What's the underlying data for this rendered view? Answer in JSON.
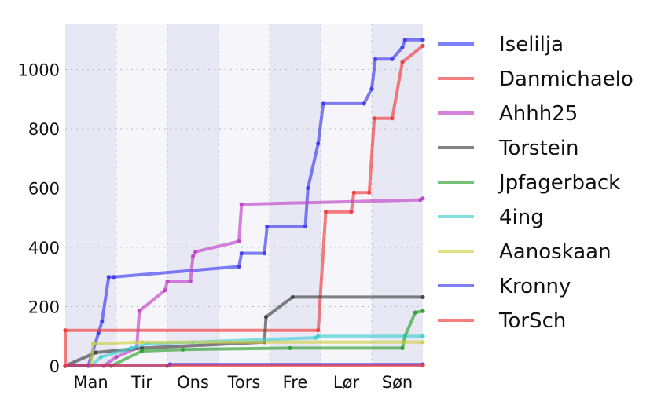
{
  "chart_data": {
    "type": "line",
    "title": "",
    "xlabel": "",
    "ylabel": "",
    "x_tick_labels": [
      "Man",
      "Tir",
      "Ons",
      "Tors",
      "Fre",
      "Lør",
      "Søn"
    ],
    "xlim": [
      0,
      7
    ],
    "ylim": [
      0,
      1155
    ],
    "y_ticks": [
      0,
      200,
      400,
      600,
      800,
      1000
    ],
    "grid": true,
    "alternating_day_shading": true,
    "legend_placement": "right",
    "series": [
      {
        "name": "Iselilja",
        "color": "#3b3bf0",
        "points": [
          [
            0,
            0
          ],
          [
            0.45,
            0
          ],
          [
            0.65,
            110
          ],
          [
            0.72,
            150
          ],
          [
            0.85,
            300
          ],
          [
            0.95,
            300
          ],
          [
            3.4,
            335
          ],
          [
            3.45,
            380
          ],
          [
            3.9,
            380
          ],
          [
            3.95,
            470
          ],
          [
            4.7,
            470
          ],
          [
            4.75,
            600
          ],
          [
            4.95,
            750
          ],
          [
            5.05,
            885
          ],
          [
            5.85,
            885
          ],
          [
            6.0,
            935
          ],
          [
            6.07,
            1035
          ],
          [
            6.4,
            1035
          ],
          [
            6.6,
            1075
          ],
          [
            6.65,
            1100
          ],
          [
            7,
            1100
          ]
        ]
      },
      {
        "name": "Danmichaelo",
        "color": "#f03b3b",
        "points": [
          [
            0,
            0
          ],
          [
            0,
            120
          ],
          [
            4.95,
            120
          ],
          [
            5.1,
            520
          ],
          [
            5.6,
            520
          ],
          [
            5.65,
            585
          ],
          [
            5.95,
            585
          ],
          [
            6.05,
            835
          ],
          [
            6.4,
            835
          ],
          [
            6.6,
            1025
          ],
          [
            7,
            1080
          ]
        ]
      },
      {
        "name": "Ahhh25",
        "color": "#c040c8",
        "points": [
          [
            0.75,
            0
          ],
          [
            1.0,
            30
          ],
          [
            1.4,
            60
          ],
          [
            1.45,
            185
          ],
          [
            1.95,
            255
          ],
          [
            2.0,
            285
          ],
          [
            2.45,
            285
          ],
          [
            2.5,
            370
          ],
          [
            2.55,
            385
          ],
          [
            3.4,
            420
          ],
          [
            3.45,
            545
          ],
          [
            6.95,
            560
          ],
          [
            7,
            565
          ]
        ]
      },
      {
        "name": "Torstein",
        "color": "#404040",
        "points": [
          [
            0,
            0
          ],
          [
            0.6,
            45
          ],
          [
            1.5,
            60
          ],
          [
            3.9,
            80
          ],
          [
            3.93,
            165
          ],
          [
            4.45,
            232
          ],
          [
            7,
            232
          ]
        ]
      },
      {
        "name": "Jpfagerback",
        "color": "#2e9e2e",
        "points": [
          [
            0.9,
            0
          ],
          [
            1.5,
            50
          ],
          [
            2.3,
            55
          ],
          [
            4.4,
            60
          ],
          [
            6.6,
            60
          ],
          [
            6.65,
            100
          ],
          [
            6.85,
            180
          ],
          [
            7,
            185
          ]
        ]
      },
      {
        "name": "4ing",
        "color": "#40d0d0",
        "points": [
          [
            0.5,
            0
          ],
          [
            0.7,
            30
          ],
          [
            1.3,
            60
          ],
          [
            1.6,
            75
          ],
          [
            2.5,
            80
          ],
          [
            4.9,
            95
          ],
          [
            4.95,
            100
          ],
          [
            7,
            100
          ]
        ]
      },
      {
        "name": "Aanoskaan",
        "color": "#d0d040",
        "points": [
          [
            0.5,
            0
          ],
          [
            0.55,
            75
          ],
          [
            1.5,
            80
          ],
          [
            7,
            80
          ]
        ]
      },
      {
        "name": "Kronny",
        "color": "#3b3bf0",
        "points": [
          [
            0,
            0
          ],
          [
            2.0,
            0
          ],
          [
            2.05,
            5
          ],
          [
            7,
            5
          ]
        ]
      },
      {
        "name": "TorSch",
        "color": "#f03b3b",
        "points": [
          [
            0,
            0
          ],
          [
            7,
            2
          ]
        ]
      }
    ]
  }
}
